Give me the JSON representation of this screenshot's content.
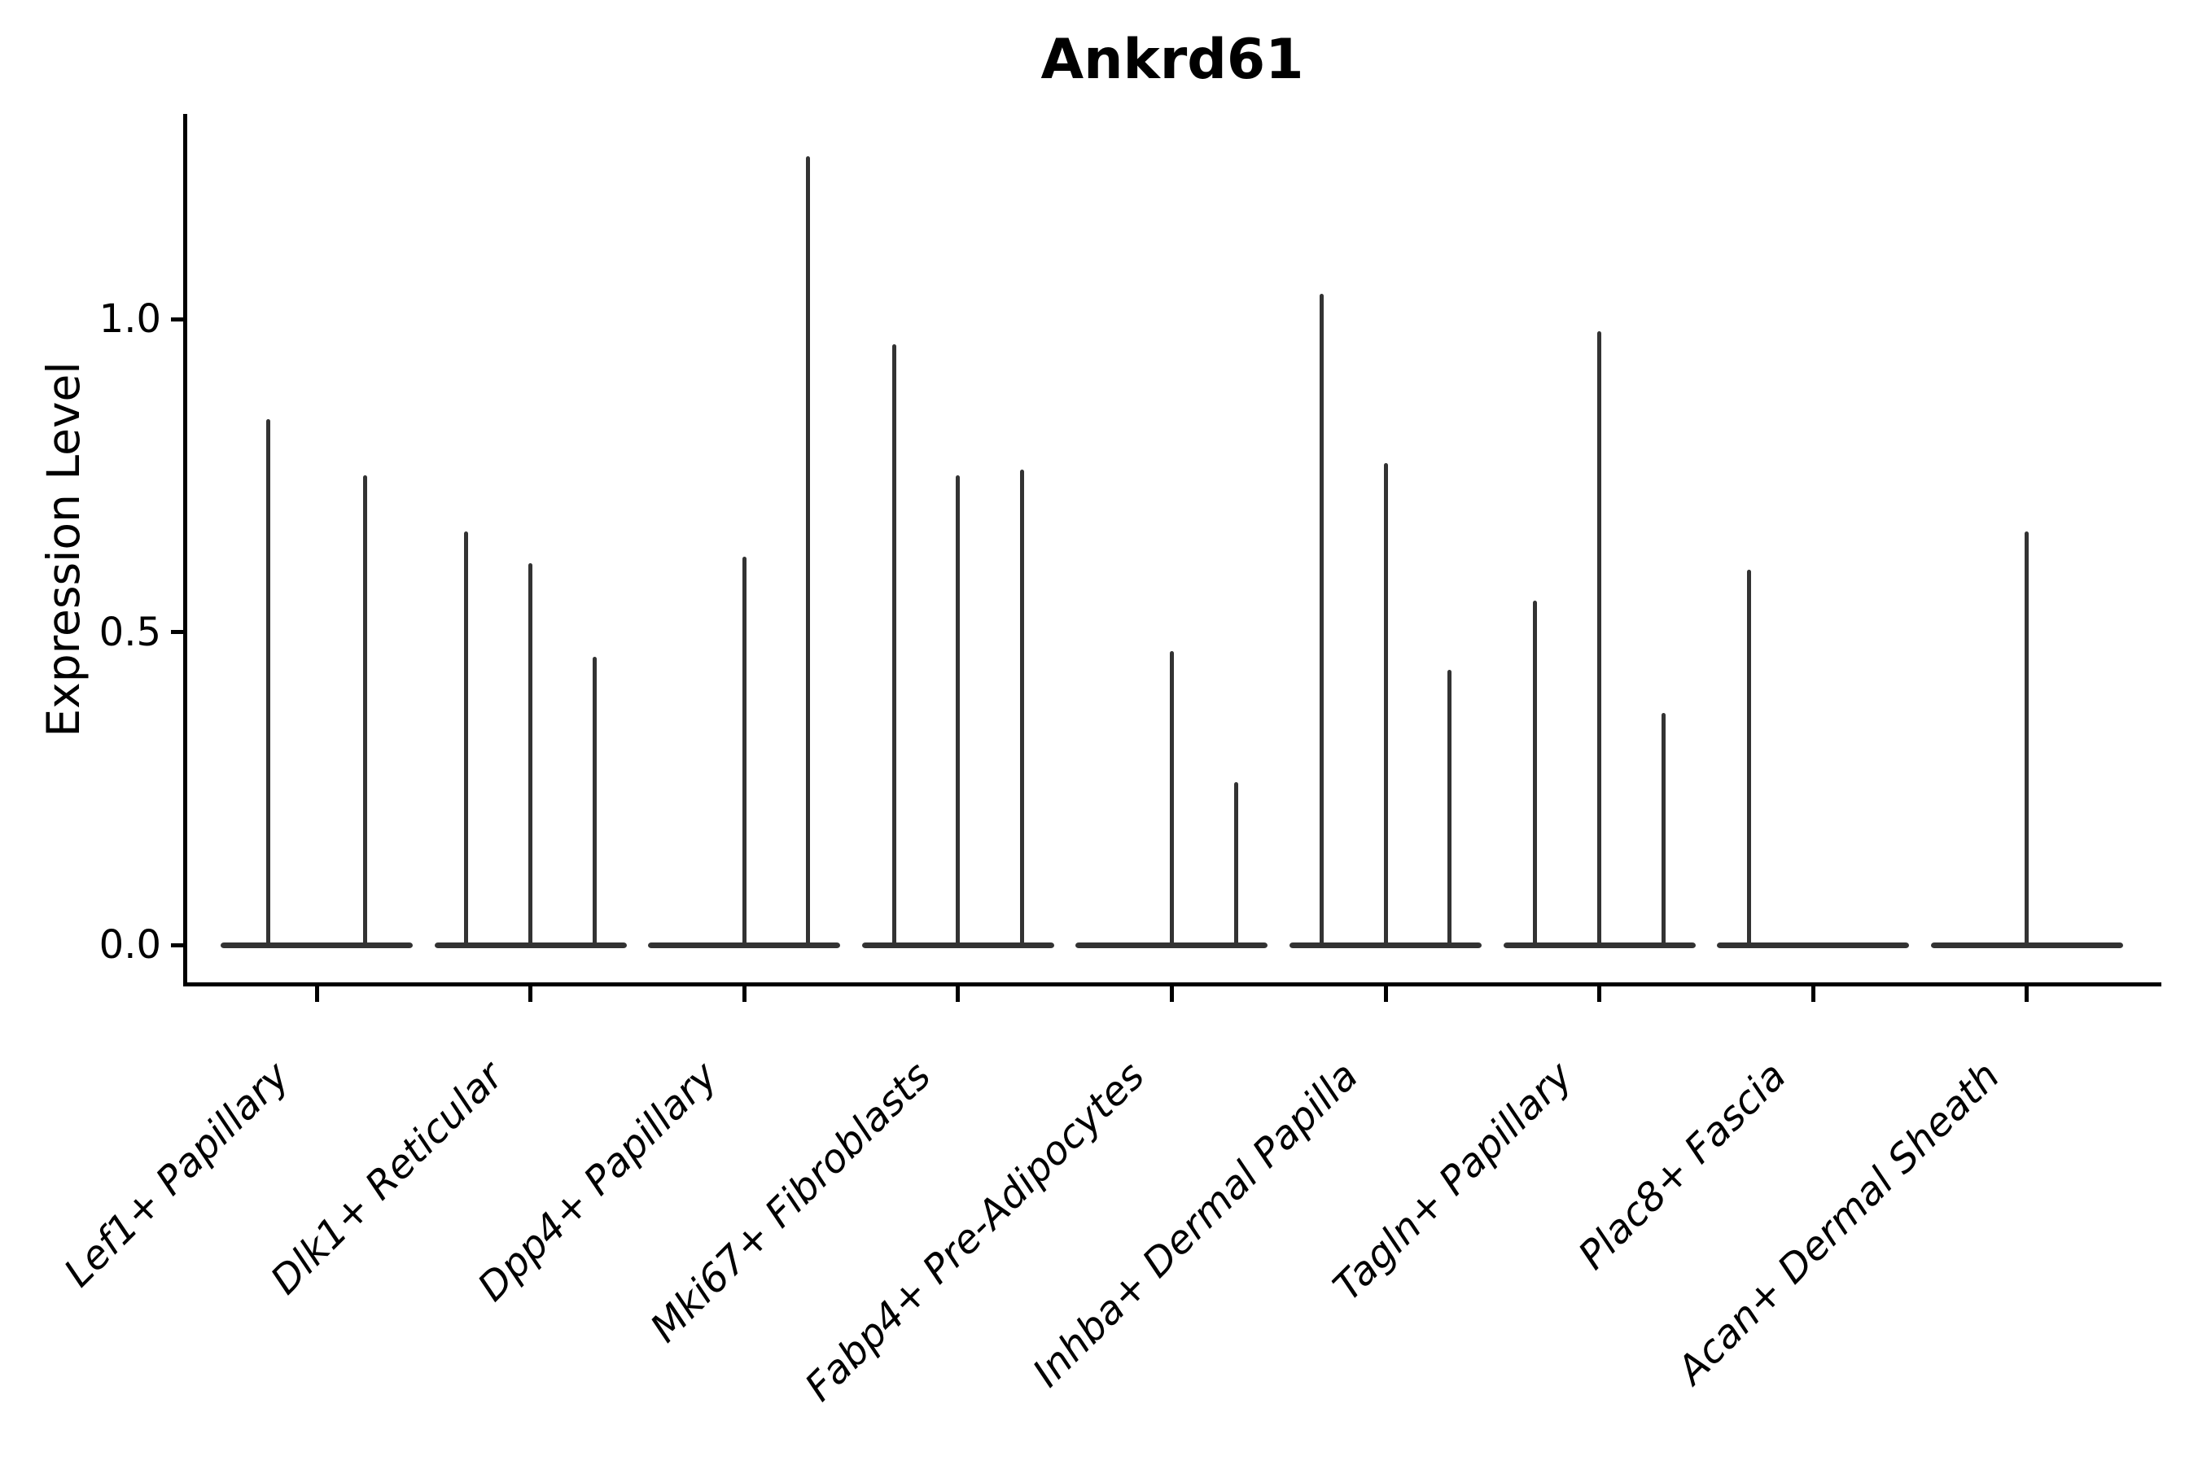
{
  "chart": {
    "title": "Ankrd61",
    "ylabel": "Expression Level"
  },
  "chart_data": {
    "type": "violin",
    "title": "Ankrd61",
    "xlabel": "",
    "ylabel": "Expression Level",
    "ytick_values": [
      0.0,
      0.5,
      1.0
    ],
    "ylim": [
      -0.06,
      1.33
    ],
    "grid": false,
    "legend": false,
    "note": "Collapsed violins: wide flat base at 0 expression, thin spike up to max expression; 2-3 dodged violins per category, max=0 means flat baseline-only violin",
    "categories": [
      "Lef1+ Papillary",
      "Dlk1+ Reticular",
      "Dpp4+ Papillary",
      "Mki67+ Fibroblasts",
      "Fabp4+ Pre-Adipocytes",
      "Inhba+ Dermal Papilla",
      "Tagln+ Papillary",
      "Plac8+ Fascia",
      "Acan+ Dermal Sheath"
    ],
    "groups": [
      {
        "category": "Lef1+ Papillary",
        "violins": [
          {
            "offset": -0.225,
            "max": 0.84
          },
          {
            "offset": 0.225,
            "max": 0.75
          }
        ]
      },
      {
        "category": "Dlk1+ Reticular",
        "violins": [
          {
            "offset": -0.3,
            "max": 0.66
          },
          {
            "offset": 0,
            "max": 0.61
          },
          {
            "offset": 0.3,
            "max": 0.46
          }
        ]
      },
      {
        "category": "Dpp4+ Papillary",
        "violins": [
          {
            "offset": -0.3,
            "max": 0
          },
          {
            "offset": 0,
            "max": 0.62
          },
          {
            "offset": 0.3,
            "max": 1.26
          }
        ]
      },
      {
        "category": "Mki67+ Fibroblasts",
        "violins": [
          {
            "offset": -0.3,
            "max": 0.96
          },
          {
            "offset": 0,
            "max": 0.75
          },
          {
            "offset": 0.3,
            "max": 0.76
          }
        ]
      },
      {
        "category": "Fabp4+ Pre-Adipocytes",
        "violins": [
          {
            "offset": -0.3,
            "max": 0
          },
          {
            "offset": 0,
            "max": 0.47
          },
          {
            "offset": 0.3,
            "max": 0.26
          }
        ]
      },
      {
        "category": "Inhba+ Dermal Papilla",
        "violins": [
          {
            "offset": -0.3,
            "max": 1.04
          },
          {
            "offset": 0,
            "max": 0.77
          },
          {
            "offset": 0.3,
            "max": 0.44
          }
        ]
      },
      {
        "category": "Tagln+ Papillary",
        "violins": [
          {
            "offset": -0.3,
            "max": 0.55
          },
          {
            "offset": 0,
            "max": 0.98
          },
          {
            "offset": 0.3,
            "max": 0.37
          }
        ]
      },
      {
        "category": "Plac8+ Fascia",
        "violins": [
          {
            "offset": -0.3,
            "max": 0.6
          },
          {
            "offset": 0,
            "max": 0
          },
          {
            "offset": 0.3,
            "max": 0
          }
        ]
      },
      {
        "category": "Acan+ Dermal Sheath",
        "violins": [
          {
            "offset": 0,
            "max": 0.66
          }
        ]
      }
    ],
    "colors": {
      "violin_line": "#333333",
      "axis": "#000000",
      "background": "#ffffff"
    }
  }
}
